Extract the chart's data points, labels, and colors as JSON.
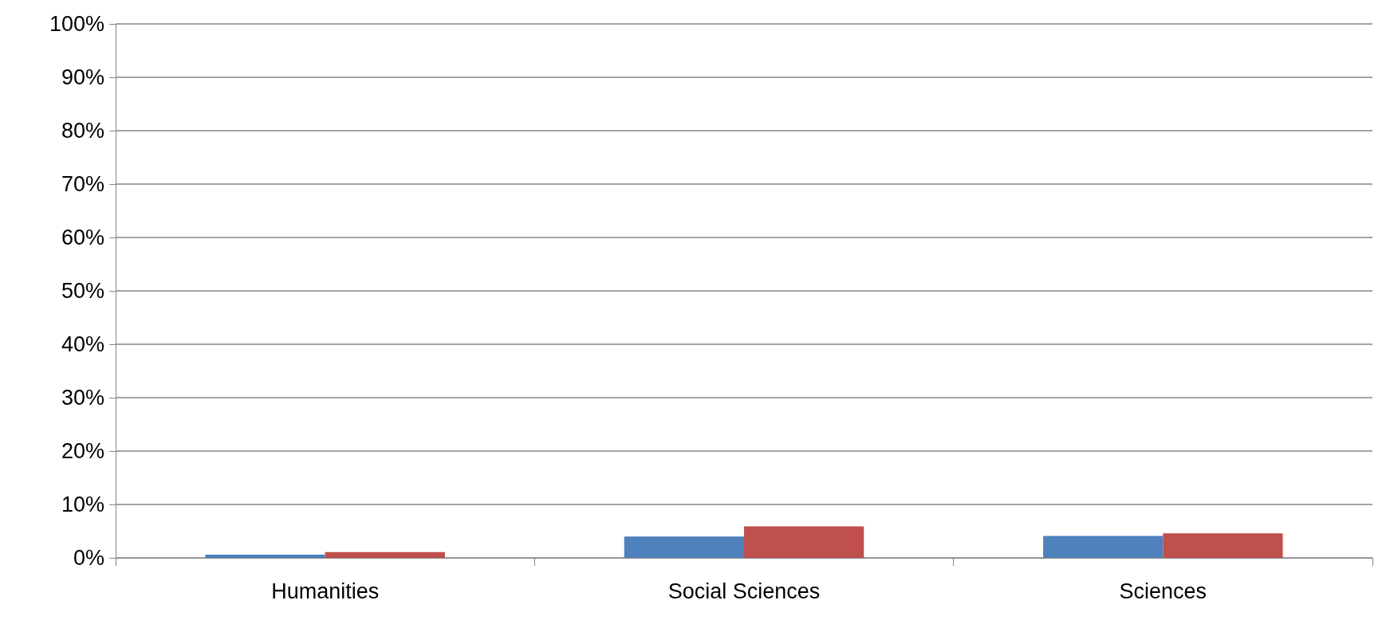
{
  "chart_data": {
    "type": "bar",
    "categories": [
      "Humanities",
      "Social Sciences",
      "Sciences"
    ],
    "series": [
      {
        "color": "#4f81bd",
        "values": [
          0.6,
          4.0,
          4.1
        ]
      },
      {
        "color": "#c0504d",
        "values": [
          1.1,
          5.9,
          4.6
        ]
      }
    ],
    "ylim": [
      0,
      100
    ],
    "yticks": [
      {
        "value": 0,
        "label": "0%"
      },
      {
        "value": 10,
        "label": "10%"
      },
      {
        "value": 20,
        "label": "20%"
      },
      {
        "value": 30,
        "label": "30%"
      },
      {
        "value": 40,
        "label": "40%"
      },
      {
        "value": 50,
        "label": "50%"
      },
      {
        "value": 60,
        "label": "60%"
      },
      {
        "value": 70,
        "label": "70%"
      },
      {
        "value": 80,
        "label": "80%"
      },
      {
        "value": 90,
        "label": "90%"
      },
      {
        "value": 100,
        "label": "100%"
      }
    ],
    "grid": "y"
  }
}
